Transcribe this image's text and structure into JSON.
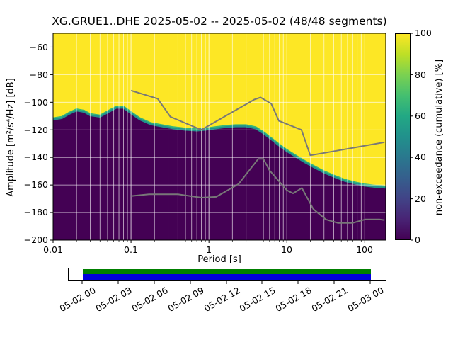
{
  "title": "XG.GRUE1..DHE   2025-05-02 -- 2025-05-02  (48/48 segments)",
  "axes": {
    "xlabel": "Period [s]",
    "ylabel": "Amplitude [m²/s⁴/Hz] [dB]",
    "x_tick_labels": [
      "0.01",
      "0.1",
      "1",
      "10",
      "100"
    ],
    "y_tick_labels": [
      "−60",
      "−80",
      "−100",
      "−120",
      "−140",
      "−160",
      "−180",
      "−200"
    ]
  },
  "colorbar": {
    "label": "non-exceedance (cumulative) [%]",
    "tick_labels": [
      "100",
      "80",
      "60",
      "40",
      "20",
      "0"
    ]
  },
  "timeline": {
    "labels": [
      "05-02 00",
      "05-02 03",
      "05-02 06",
      "05-02 09",
      "05-02 12",
      "05-02 15",
      "05-02 18",
      "05-02 21",
      "05-03 00"
    ],
    "bar_colors": {
      "top": "#008000",
      "bottom": "#0000dd"
    }
  },
  "chart_data": {
    "type": "heatmap",
    "subtype": "ppsd-cumulative",
    "title": "XG.GRUE1..DHE   2025-05-02 -- 2025-05-02  (48/48 segments)",
    "xlabel": "Period [s]",
    "ylabel": "Amplitude [m²/s⁴/Hz] [dB]",
    "x_scale": "log",
    "xlim": [
      0.01,
      186
    ],
    "ylim": [
      -200,
      -50
    ],
    "x_ticks": [
      0.01,
      0.1,
      1,
      10,
      100
    ],
    "y_ticks": [
      -60,
      -80,
      -100,
      -120,
      -140,
      -160,
      -180,
      -200
    ],
    "grid": true,
    "colormap": "viridis",
    "colorbar": {
      "label": "non-exceedance (cumulative) [%]",
      "ticks": [
        100,
        80,
        60,
        40,
        20,
        0
      ],
      "position": "right"
    },
    "colors": {
      "high": "#fde725",
      "low": "#440154",
      "band_teal": "#21918c",
      "band_green": "#35b779",
      "noise_model_gray": "#787878",
      "grid": "rgba(255,255,255,0.75)"
    },
    "viridis_stops": [
      "#440154",
      "#482475",
      "#414487",
      "#355f8d",
      "#2a788e",
      "#21918c",
      "#22a884",
      "#44bf70",
      "#7ad151",
      "#bddf26",
      "#fde725"
    ],
    "cumulative_boundary": {
      "points": [
        [
          0.01,
          -113
        ],
        [
          0.013,
          -112
        ],
        [
          0.016,
          -109
        ],
        [
          0.02,
          -106.5
        ],
        [
          0.025,
          -107.5
        ],
        [
          0.03,
          -110
        ],
        [
          0.04,
          -111
        ],
        [
          0.05,
          -108
        ],
        [
          0.065,
          -104.5
        ],
        [
          0.08,
          -104.5
        ],
        [
          0.1,
          -108.5
        ],
        [
          0.13,
          -113
        ],
        [
          0.18,
          -116.5
        ],
        [
          0.25,
          -118
        ],
        [
          0.35,
          -119.5
        ],
        [
          0.5,
          -120.5
        ],
        [
          0.7,
          -121
        ],
        [
          0.9,
          -120.5
        ],
        [
          1.2,
          -119.5
        ],
        [
          1.7,
          -118.5
        ],
        [
          2.2,
          -118
        ],
        [
          3,
          -118
        ],
        [
          4,
          -119.5
        ],
        [
          5,
          -123
        ],
        [
          6.5,
          -128
        ],
        [
          8,
          -132
        ],
        [
          10,
          -136
        ],
        [
          13,
          -140
        ],
        [
          17,
          -144
        ],
        [
          22,
          -147.5
        ],
        [
          30,
          -151.5
        ],
        [
          40,
          -154.5
        ],
        [
          55,
          -157.5
        ],
        [
          75,
          -159.5
        ],
        [
          100,
          -161
        ],
        [
          140,
          -162
        ],
        [
          186,
          -162.5
        ]
      ]
    },
    "noise_models": {
      "nhnm": [
        [
          0.1,
          -91.5
        ],
        [
          0.22,
          -97.4
        ],
        [
          0.32,
          -110.5
        ],
        [
          0.8,
          -120
        ],
        [
          3.8,
          -98.1
        ],
        [
          4.6,
          -96.5
        ],
        [
          6.3,
          -101
        ],
        [
          7.9,
          -113.5
        ],
        [
          15.4,
          -120
        ],
        [
          20,
          -138.5
        ],
        [
          179,
          -129
        ]
      ],
      "nlnm": [
        [
          0.1,
          -168
        ],
        [
          0.17,
          -166.7
        ],
        [
          0.4,
          -166.7
        ],
        [
          0.8,
          -169.2
        ],
        [
          1.24,
          -168.6
        ],
        [
          2.4,
          -159.3
        ],
        [
          4.3,
          -141.1
        ],
        [
          5,
          -141.1
        ],
        [
          6,
          -149.4
        ],
        [
          10,
          -163.8
        ],
        [
          12,
          -166.1
        ],
        [
          15.6,
          -162.2
        ],
        [
          21.9,
          -177.5
        ],
        [
          31.6,
          -185
        ],
        [
          45,
          -187.5
        ],
        [
          70,
          -187.5
        ],
        [
          101,
          -185
        ],
        [
          154,
          -185
        ],
        [
          179,
          -185.5
        ]
      ]
    }
  }
}
